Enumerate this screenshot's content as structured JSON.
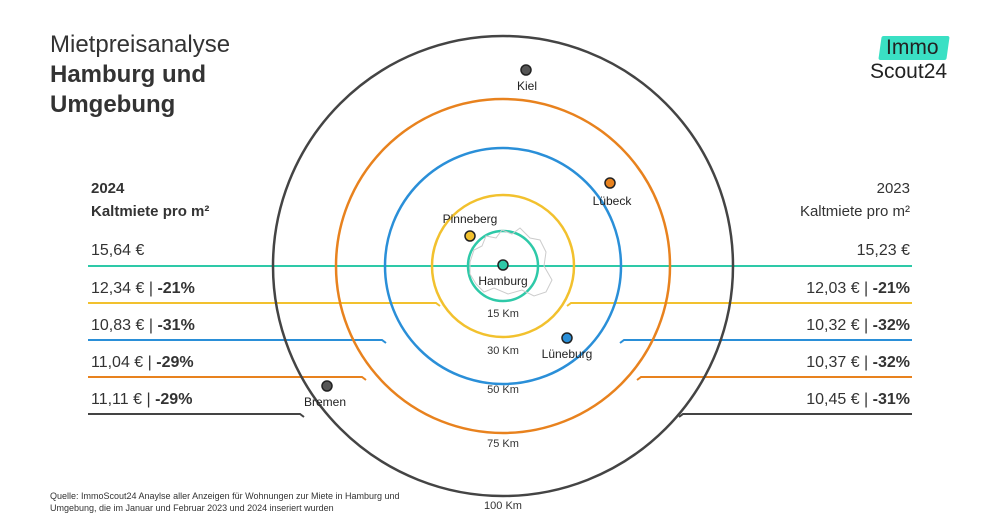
{
  "title": {
    "line1": "Mietpreisanalyse",
    "line2": "Hamburg und",
    "line3": "Umgebung"
  },
  "logo": {
    "top": "Immo",
    "bottom": "Scout24",
    "accent": "#3ae0c4"
  },
  "left": {
    "year": "2024",
    "subtitle": "Kaltmiete pro m²",
    "rows": [
      {
        "value": "15,64 €",
        "change": ""
      },
      {
        "value": "12,34 € | ",
        "change": "-21%"
      },
      {
        "value": "10,83 € | ",
        "change": "-31%"
      },
      {
        "value": "11,04 € | ",
        "change": "-29%"
      },
      {
        "value": "11,11 € | ",
        "change": "-29%"
      }
    ]
  },
  "right": {
    "year": "2023",
    "subtitle": "Kaltmiete pro m²",
    "rows": [
      {
        "value": "15,23 €",
        "change": ""
      },
      {
        "value": "12,03 € | ",
        "change": "-21%"
      },
      {
        "value": "10,32 € | ",
        "change": "-32%"
      },
      {
        "value": "10,37 € | ",
        "change": "-32%"
      },
      {
        "value": "10,45 € | ",
        "change": "-31%"
      }
    ]
  },
  "rings": [
    {
      "label": "15 Km",
      "color": "#2ec9a8"
    },
    {
      "label": "30 Km",
      "color": "#f2c12e"
    },
    {
      "label": "50 Km",
      "color": "#2a8fd8"
    },
    {
      "label": "75 Km",
      "color": "#e8821e"
    },
    {
      "label": "100 Km",
      "color": "#444444"
    }
  ],
  "cities": [
    {
      "name": "Hamburg",
      "color": "#2ec9a8"
    },
    {
      "name": "Pinneberg",
      "color": "#f2c12e"
    },
    {
      "name": "Lüneburg",
      "color": "#2a8fd8"
    },
    {
      "name": "Lübeck",
      "color": "#e8821e"
    },
    {
      "name": "Kiel",
      "color": "#444444"
    },
    {
      "name": "Bremen",
      "color": "#444444"
    }
  ],
  "footnote": "Quelle: ImmoScout24 Anaylse aller Anzeigen für Wohnungen zur Miete in Hamburg und Umgebung, die im Januar und Februar 2023 und 2024 inseriert wurden"
}
